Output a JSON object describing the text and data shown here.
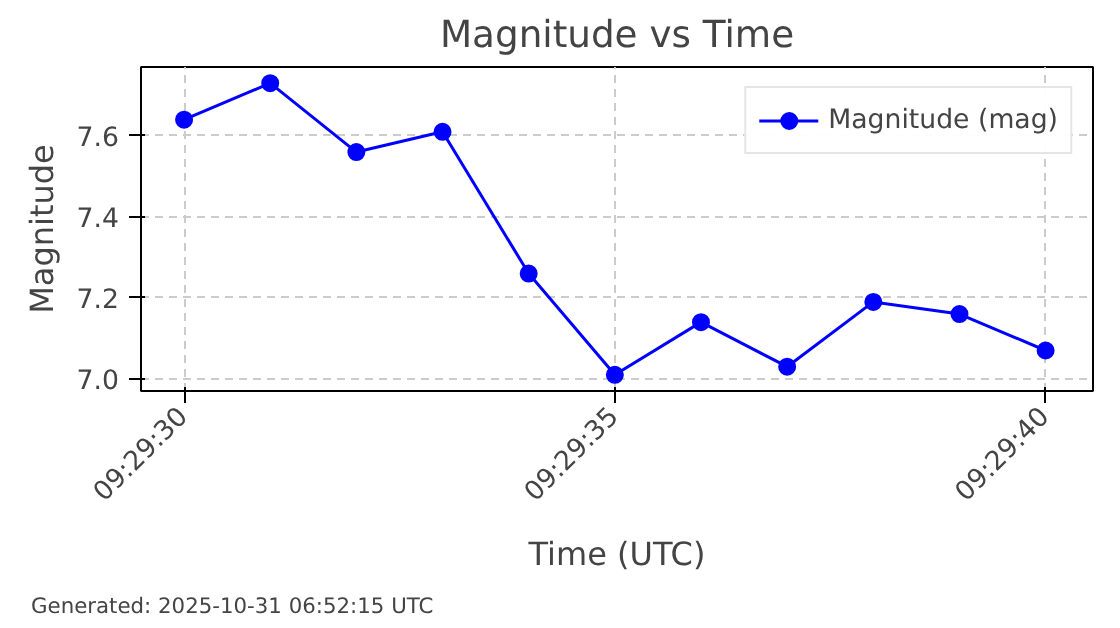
{
  "chart_data": {
    "type": "line",
    "title": "Magnitude vs Time",
    "xlabel": "Time (UTC)",
    "ylabel": "Magnitude",
    "x": [
      9.4916667,
      9.4919444,
      9.4922222,
      9.4925,
      9.4927778,
      9.4930556,
      9.4933333,
      9.4936111,
      9.4938889,
      9.4941667,
      9.4944444
    ],
    "series": [
      {
        "name": "Magnitude (mag)",
        "color": "#0000ff",
        "values": [
          7.64,
          7.73,
          7.56,
          7.61,
          7.26,
          7.01,
          7.14,
          7.03,
          7.19,
          7.16,
          7.07
        ]
      }
    ],
    "xlim": [
      9.4915278,
      9.4945972
    ],
    "xticks": [
      {
        "value": 9.4916667,
        "label": "09:29:30"
      },
      {
        "value": 9.4930556,
        "label": "09:29:35"
      },
      {
        "value": 9.4944444,
        "label": "09:29:40"
      }
    ],
    "ylim": [
      6.97,
      7.77
    ],
    "yticks": [
      {
        "value": 7.0,
        "label": "7.0"
      },
      {
        "value": 7.2,
        "label": "7.2"
      },
      {
        "value": 7.4,
        "label": "7.4"
      },
      {
        "value": 7.6,
        "label": "7.6"
      }
    ],
    "grid": true,
    "legend": "top right",
    "marker": "circle",
    "line_style": "solid",
    "annotations": [
      "Generated: 2025-10-31 06:52:15 UTC"
    ]
  }
}
